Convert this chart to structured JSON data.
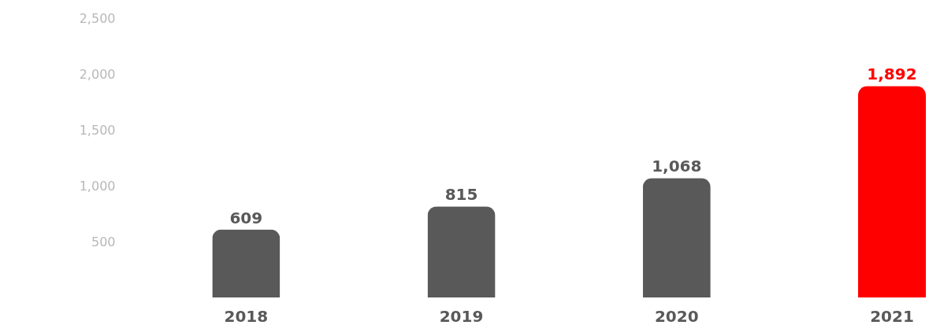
{
  "chart_data": {
    "type": "bar",
    "categories": [
      "2018",
      "2019",
      "2020",
      "2021"
    ],
    "values": [
      609,
      815,
      1068,
      1892
    ],
    "value_labels": [
      "609",
      "815",
      "1,068",
      "1,892"
    ],
    "colors": [
      "#595959",
      "#595959",
      "#595959",
      "#ff0000"
    ],
    "ylim": [
      0,
      2500
    ],
    "yticks": [
      {
        "value": 500,
        "label": "500"
      },
      {
        "value": 1000,
        "label": "1,000"
      },
      {
        "value": 1500,
        "label": "1,500"
      },
      {
        "value": 2000,
        "label": "2,000"
      },
      {
        "value": 2500,
        "label": "2,500"
      }
    ],
    "grid": false
  }
}
